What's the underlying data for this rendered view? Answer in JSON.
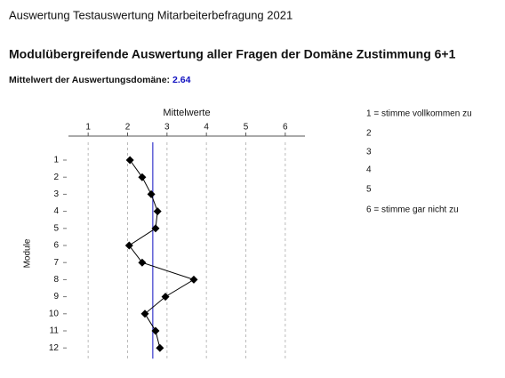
{
  "header": {
    "title": "Auswertung Testauswertung Mitarbeiterbefragung 2021",
    "heading": "Modulübergreifende Auswertung aller Fragen der Domäne Zustimmung 6+1",
    "mean_label": "Mittelwert der Auswertungsdomäne:"
  },
  "chart_data": {
    "type": "dotline",
    "x_label": "Mittelwerte",
    "y_label": "Module",
    "categories": [
      "1",
      "2",
      "3",
      "4",
      "5",
      "6",
      "7",
      "8",
      "9",
      "10",
      "11",
      "12"
    ],
    "values": [
      2.06,
      2.37,
      2.6,
      2.76,
      2.71,
      2.04,
      2.37,
      3.68,
      2.96,
      2.44,
      2.71,
      2.82
    ],
    "mean": 2.64,
    "mean_color": "#1010c0",
    "color": "#000000",
    "xlim": [
      0.5,
      6.5
    ],
    "xticks": [
      1,
      2,
      3,
      4,
      5,
      6
    ],
    "grid": true,
    "legend": [
      "1 = stimme vollkommen zu",
      "2",
      "3",
      "4",
      "5",
      "6 = stimme gar nicht zu"
    ]
  }
}
